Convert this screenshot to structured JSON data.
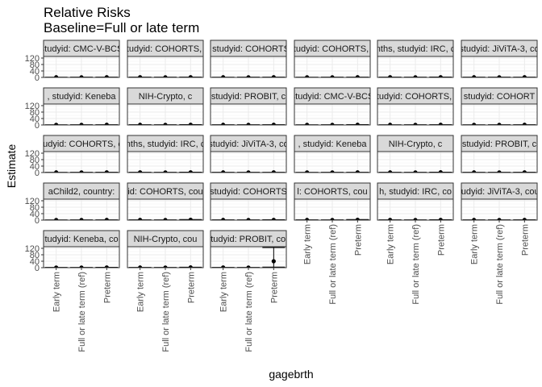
{
  "chart_data": {
    "type": "scatter",
    "title": "Relative Risks",
    "subtitle": "Baseline=Full or late term",
    "xlabel": "gagebrth",
    "ylabel": "Estimate",
    "ylim": [
      0,
      130
    ],
    "yticks": [
      0,
      40,
      80,
      120
    ],
    "categories": [
      "Early term",
      "Full or late term (ref)",
      "Preterm"
    ],
    "grid": true,
    "facet_columns": 6,
    "panels": [
      {
        "strip": "studyid: CMC-V-BCS",
        "estimates": [
          1.1,
          1.0,
          1.3
        ],
        "lower": [
          0.8,
          1.0,
          0.9
        ],
        "upper": [
          1.5,
          1.0,
          1.9
        ]
      },
      {
        "strip": "studyid: COHORTS, c",
        "estimates": [
          1.2,
          1.0,
          1.4
        ],
        "lower": [
          0.9,
          1.0,
          1.0
        ],
        "upper": [
          1.6,
          1.0,
          2.0
        ]
      },
      {
        "strip": ", studyid: COHORTS",
        "estimates": [
          1.1,
          1.0,
          1.3
        ],
        "lower": [
          0.8,
          1.0,
          0.9
        ],
        "upper": [
          1.5,
          1.0,
          1.8
        ]
      },
      {
        "strip": "studyid: COHORTS, c",
        "estimates": [
          1.0,
          1.0,
          1.2
        ],
        "lower": [
          0.8,
          1.0,
          0.9
        ],
        "upper": [
          1.4,
          1.0,
          1.7
        ]
      },
      {
        "strip": "nths, studyid: IRC, c",
        "estimates": [
          1.2,
          1.0,
          1.5
        ],
        "lower": [
          0.9,
          1.0,
          1.0
        ],
        "upper": [
          1.7,
          1.0,
          2.2
        ]
      },
      {
        "strip": "studyid: JiViTA-3, co",
        "estimates": [
          1.1,
          1.0,
          1.3
        ],
        "lower": [
          1.0,
          1.0,
          1.1
        ],
        "upper": [
          1.2,
          1.0,
          1.5
        ]
      },
      {
        "strip": ", studyid: Keneba",
        "estimates": [
          1.0,
          1.0,
          1.4
        ],
        "lower": [
          0.7,
          1.0,
          0.9
        ],
        "upper": [
          1.5,
          1.0,
          2.1
        ]
      },
      {
        "strip": "NIH-Crypto, c",
        "estimates": [
          1.1,
          1.0,
          1.6
        ],
        "lower": [
          0.7,
          1.0,
          1.0
        ],
        "upper": [
          1.7,
          1.0,
          2.6
        ]
      },
      {
        "strip": "studyid: PROBIT, c",
        "estimates": [
          1.1,
          1.0,
          1.3
        ],
        "lower": [
          1.0,
          1.0,
          1.1
        ],
        "upper": [
          1.2,
          1.0,
          1.6
        ]
      },
      {
        "strip": "studyid: CMC-V-BCS",
        "estimates": [
          1.0,
          1.0,
          1.4
        ],
        "lower": [
          0.7,
          1.0,
          0.9
        ],
        "upper": [
          1.4,
          1.0,
          2.2
        ]
      },
      {
        "strip": "studyid: COHORTS, c",
        "estimates": [
          1.1,
          1.0,
          1.3
        ],
        "lower": [
          0.9,
          1.0,
          1.0
        ],
        "upper": [
          1.4,
          1.0,
          1.8
        ]
      },
      {
        "strip": "studyid: COHORT",
        "estimates": [
          1.0,
          1.0,
          1.2
        ],
        "lower": [
          0.8,
          1.0,
          0.9
        ],
        "upper": [
          1.3,
          1.0,
          1.7
        ]
      },
      {
        "strip": "tudyid: COHORTS, c",
        "estimates": [
          1.1,
          1.0,
          1.4
        ],
        "lower": [
          0.8,
          1.0,
          1.0
        ],
        "upper": [
          1.5,
          1.0,
          2.0
        ]
      },
      {
        "strip": "nths, studyid: IRC, c",
        "estimates": [
          1.2,
          1.0,
          1.5
        ],
        "lower": [
          0.9,
          1.0,
          1.0
        ],
        "upper": [
          1.7,
          1.0,
          2.3
        ]
      },
      {
        "strip": "studyid: JiViTA-3, co",
        "estimates": [
          1.1,
          1.0,
          1.3
        ],
        "lower": [
          1.0,
          1.0,
          1.1
        ],
        "upper": [
          1.2,
          1.0,
          1.5
        ]
      },
      {
        "strip": ", studyid: Keneba",
        "estimates": [
          1.0,
          1.0,
          1.3
        ],
        "lower": [
          0.7,
          1.0,
          0.9
        ],
        "upper": [
          1.4,
          1.0,
          2.0
        ]
      },
      {
        "strip": "NIH-Crypto, c",
        "estimates": [
          1.1,
          1.0,
          1.7
        ],
        "lower": [
          0.7,
          1.0,
          1.0
        ],
        "upper": [
          1.7,
          1.0,
          2.8
        ]
      },
      {
        "strip": "studyid: PROBIT, c",
        "estimates": [
          1.1,
          1.0,
          1.4
        ],
        "lower": [
          1.0,
          1.0,
          1.1
        ],
        "upper": [
          1.2,
          1.0,
          1.7
        ]
      },
      {
        "strip": "aChild2, country:",
        "estimates": [
          1.0,
          1.0,
          1.3
        ],
        "lower": [
          0.7,
          1.0,
          0.9
        ],
        "upper": [
          1.5,
          1.0,
          2.0
        ]
      },
      {
        "strip": "id: COHORTS, cou",
        "estimates": [
          1.2,
          1.0,
          1.8
        ],
        "lower": [
          0.8,
          1.0,
          1.0
        ],
        "upper": [
          1.9,
          1.0,
          3.5
        ]
      },
      {
        "strip": "studyid: COHORTS",
        "estimates": [
          1.1,
          1.0,
          1.6
        ],
        "lower": [
          0.8,
          1.0,
          1.0
        ],
        "upper": [
          1.6,
          1.0,
          2.7
        ]
      },
      {
        "strip": "l: COHORTS, cou",
        "estimates": [
          1.1,
          1.0,
          2.0
        ],
        "lower": [
          0.8,
          1.0,
          1.0
        ],
        "upper": [
          1.7,
          1.0,
          4.0
        ]
      },
      {
        "strip": "h, studyid: IRC, co",
        "estimates": [
          1.2,
          1.0,
          1.6
        ],
        "lower": [
          0.9,
          1.0,
          1.0
        ],
        "upper": [
          1.7,
          1.0,
          2.6
        ]
      },
      {
        "strip": "studyid: JiViTA-3, coun",
        "estimates": [
          1.1,
          1.0,
          1.3
        ],
        "lower": [
          1.0,
          1.0,
          1.1
        ],
        "upper": [
          1.3,
          1.0,
          1.6
        ]
      },
      {
        "strip": "tudyid: Keneba, co",
        "estimates": [
          1.0,
          1.0,
          1.6
        ],
        "lower": [
          0.6,
          1.0,
          0.9
        ],
        "upper": [
          1.6,
          1.0,
          2.8
        ]
      },
      {
        "strip": "NIH-Crypto, cou",
        "estimates": [
          1.1,
          1.0,
          1.7
        ],
        "lower": [
          0.6,
          1.0,
          0.9
        ],
        "upper": [
          1.9,
          1.0,
          3.3
        ]
      },
      {
        "strip": "studyid: PROBIT, cou",
        "estimates": [
          1.2,
          1.0,
          40.0
        ],
        "lower": [
          0.7,
          1.0,
          4.0
        ],
        "upper": [
          1.9,
          1.0,
          125.0
        ]
      }
    ]
  }
}
